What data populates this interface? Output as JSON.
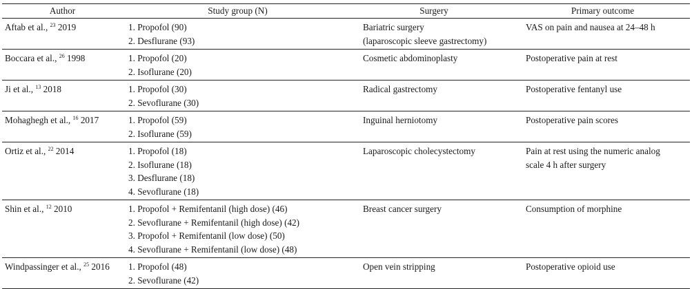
{
  "headers": {
    "author": "Author",
    "group": "Study group (N)",
    "surgery": "Surgery",
    "outcome": "Primary outcome"
  },
  "rows": [
    {
      "author": "Aftab et al.,",
      "ref": "23",
      "year": "2019",
      "groups": [
        "1. Propofol (90)",
        "2. Desflurane (93)"
      ],
      "surgery": [
        "Bariatric surgery",
        "(laparoscopic sleeve gastrectomy)"
      ],
      "outcome": [
        "VAS on pain and nausea at 24–48 h"
      ]
    },
    {
      "author": "Boccara et al.,",
      "ref": "26",
      "year": "1998",
      "groups": [
        "1. Propofol (20)",
        "2. Isoflurane (20)"
      ],
      "surgery": [
        "Cosmetic abdominoplasty"
      ],
      "outcome": [
        "Postoperative pain at rest"
      ]
    },
    {
      "author": "Ji et al.,",
      "ref": "13",
      "year": "2018",
      "groups": [
        "1. Propofol (30)",
        "2. Sevoflurane (30)"
      ],
      "surgery": [
        "Radical gastrectomy"
      ],
      "outcome": [
        "Postoperative fentanyl use"
      ]
    },
    {
      "author": "Mohaghegh et al.,",
      "ref": "16",
      "year": "2017",
      "groups": [
        "1. Propofol (59)",
        "2. Isoflurane (59)"
      ],
      "surgery": [
        "Inguinal herniotomy"
      ],
      "outcome": [
        "Postoperative pain scores"
      ]
    },
    {
      "author": "Ortiz et al.,",
      "ref": "22",
      "year": "2014",
      "groups": [
        "1. Propofol (18)",
        "2. Isoflurane (18)",
        "3. Desflurane (18)",
        "4. Sevoflurane (18)"
      ],
      "surgery": [
        "Laparoscopic cholecystectomy"
      ],
      "outcome": [
        "Pain at rest using the numeric analog",
        "scale 4 h after surgery"
      ]
    },
    {
      "author": "Shin et al.,",
      "ref": "12",
      "year": "2010",
      "groups": [
        "1. Propofol + Remifentanil (high dose) (46)",
        "2. Sevoflurane + Remifentanil (high dose) (42)",
        "3. Propofol + Remifentanil (low dose) (50)",
        "4. Sevoflurane + Remifentanil (low dose) (48)"
      ],
      "surgery": [
        "Breast cancer surgery"
      ],
      "outcome": [
        "Consumption of morphine"
      ]
    },
    {
      "author": "Windpassinger et al.,",
      "ref": "25",
      "year": "2016",
      "groups": [
        "1. Propofol (48)",
        "2. Sevoflurane (42)"
      ],
      "surgery": [
        "Open vein stripping"
      ],
      "outcome": [
        "Postoperative opioid use"
      ]
    }
  ]
}
